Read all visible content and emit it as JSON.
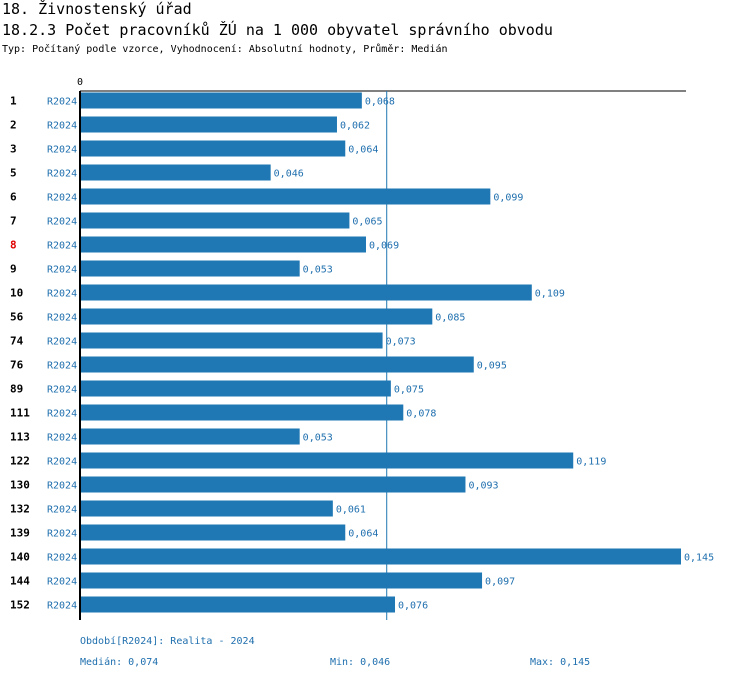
{
  "header": {
    "title": "18. Živnostenský úřad",
    "subtitle": "18.2.3 Počet pracovníků ŽÚ na 1 000 obyvatel správního obvodu",
    "type_line": "Typ: Počítaný podle vzorce, Vyhodnocení: Absolutní hodnoty, Průměr: Medián"
  },
  "chart_data": {
    "type": "bar",
    "orientation": "horizontal",
    "axis_zero_label": "0",
    "xlim": [
      0,
      0.145
    ],
    "median": 0.074,
    "series_label": "R2024",
    "highlight_category": "8",
    "colors": {
      "bar": "#1f77b4",
      "label": "#1f6fae",
      "highlight": "#e00000",
      "axis": "#000000"
    },
    "categories": [
      "1",
      "2",
      "3",
      "5",
      "6",
      "7",
      "8",
      "9",
      "10",
      "56",
      "74",
      "76",
      "89",
      "111",
      "113",
      "122",
      "130",
      "132",
      "139",
      "140",
      "144",
      "152"
    ],
    "values": [
      0.068,
      0.062,
      0.064,
      0.046,
      0.099,
      0.065,
      0.069,
      0.053,
      0.109,
      0.085,
      0.073,
      0.095,
      0.075,
      0.078,
      0.053,
      0.119,
      0.093,
      0.061,
      0.064,
      0.145,
      0.097,
      0.076
    ],
    "value_labels": [
      "0,068",
      "0,062",
      "0,064",
      "0,046",
      "0,099",
      "0,065",
      "0,069",
      "0,053",
      "0,109",
      "0,085",
      "0,073",
      "0,095",
      "0,075",
      "0,078",
      "0,053",
      "0,119",
      "0,093",
      "0,061",
      "0,064",
      "0,145",
      "0,097",
      "0,076"
    ]
  },
  "footer": {
    "period": "Období[R2024]: Realita - 2024",
    "median": "Medián: 0,074",
    "min": "Min: 0,046",
    "max": "Max: 0,145"
  }
}
